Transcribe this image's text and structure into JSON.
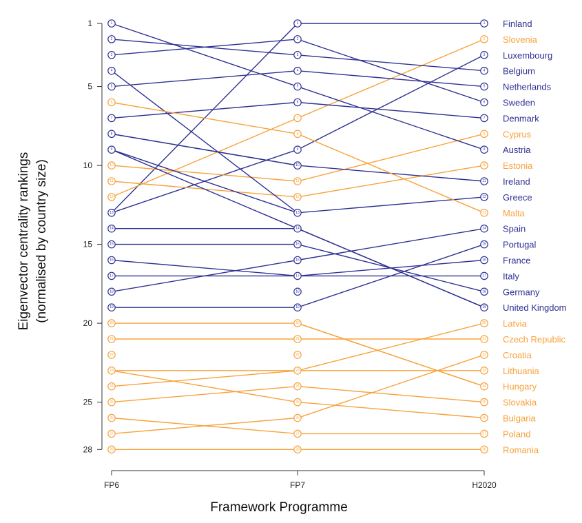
{
  "chart_data": {
    "type": "line",
    "title": "",
    "xlabel": "Framework Programme",
    "ylabel_line1": "Eigenvector centrality rankings",
    "ylabel_line2": "(normalised by country size)",
    "categories": [
      "FP6",
      "FP7",
      "H2020"
    ],
    "yticks": [
      1,
      5,
      10,
      15,
      20,
      25,
      28
    ],
    "ylim": [
      1,
      28
    ],
    "y_reversed": true,
    "group_colors": {
      "blue": "#2e3192",
      "orange": "#f7a23b"
    },
    "series": [
      {
        "name": "Finland",
        "group": "blue",
        "values": [
          13,
          1,
          1
        ]
      },
      {
        "name": "Slovenia",
        "group": "orange",
        "values": [
          12,
          7,
          2
        ]
      },
      {
        "name": "Luxembourg",
        "group": "blue",
        "values": [
          13,
          9,
          3
        ]
      },
      {
        "name": "Belgium",
        "group": "blue",
        "values": [
          2,
          3,
          4
        ]
      },
      {
        "name": "Netherlands",
        "group": "blue",
        "values": [
          5,
          4,
          5
        ]
      },
      {
        "name": "Sweden",
        "group": "blue",
        "values": [
          3,
          2,
          6
        ]
      },
      {
        "name": "Denmark",
        "group": "blue",
        "values": [
          7,
          6,
          7
        ]
      },
      {
        "name": "Cyprus",
        "group": "orange",
        "values": [
          10,
          11,
          8
        ]
      },
      {
        "name": "Austria",
        "group": "blue",
        "values": [
          1,
          5,
          9
        ]
      },
      {
        "name": "Estonia",
        "group": "orange",
        "values": [
          11,
          12,
          10
        ]
      },
      {
        "name": "Ireland",
        "group": "blue",
        "values": [
          8,
          10,
          11
        ]
      },
      {
        "name": "Greece",
        "group": "blue",
        "values": [
          4,
          13,
          12
        ]
      },
      {
        "name": "Malta",
        "group": "orange",
        "values": [
          6,
          8,
          13
        ]
      },
      {
        "name": "Spain",
        "group": "blue",
        "values": [
          18,
          16,
          14
        ]
      },
      {
        "name": "Portugal",
        "group": "blue",
        "values": [
          19,
          19,
          15
        ]
      },
      {
        "name": "France",
        "group": "blue",
        "values": [
          17,
          17,
          16
        ]
      },
      {
        "name": "Italy",
        "group": "blue",
        "values": [
          16,
          17,
          17
        ]
      },
      {
        "name": "Germany",
        "group": "blue",
        "values": [
          15,
          15,
          18
        ]
      },
      {
        "name": "United Kingdom",
        "group": "blue",
        "values": [
          9,
          14,
          19
        ]
      },
      {
        "name": "Latvia",
        "group": "orange",
        "values": [
          24,
          23,
          20
        ]
      },
      {
        "name": "Czech Republic",
        "group": "orange",
        "values": [
          21,
          21,
          21
        ]
      },
      {
        "name": "Croatia",
        "group": "orange",
        "values": [
          27,
          26,
          22
        ]
      },
      {
        "name": "Lithuania",
        "group": "orange",
        "values": [
          23,
          23,
          23
        ]
      },
      {
        "name": "Hungary",
        "group": "orange",
        "values": [
          20,
          20,
          24
        ]
      },
      {
        "name": "Slovakia",
        "group": "orange",
        "values": [
          25,
          24,
          25
        ]
      },
      {
        "name": "Bulgaria",
        "group": "orange",
        "values": [
          23,
          25,
          26
        ]
      },
      {
        "name": "Poland",
        "group": "orange",
        "values": [
          26,
          27,
          27
        ]
      },
      {
        "name": "Romania",
        "group": "orange",
        "values": [
          28,
          28,
          28
        ]
      }
    ],
    "extra_segments": [
      {
        "group": "blue",
        "from": [
          "FP6",
          14
        ],
        "to": [
          "FP7",
          14
        ]
      },
      {
        "group": "blue",
        "from": [
          "FP7",
          14
        ],
        "to": [
          "H2020",
          19
        ]
      },
      {
        "group": "orange",
        "from": [
          "FP7",
          20
        ],
        "to": [
          "H2020",
          24
        ]
      },
      {
        "group": "blue",
        "from": [
          "FP6",
          8
        ],
        "to": [
          "FP7",
          10
        ]
      },
      {
        "group": "blue",
        "from": [
          "FP6",
          9
        ],
        "to": [
          "FP7",
          13
        ]
      }
    ]
  }
}
